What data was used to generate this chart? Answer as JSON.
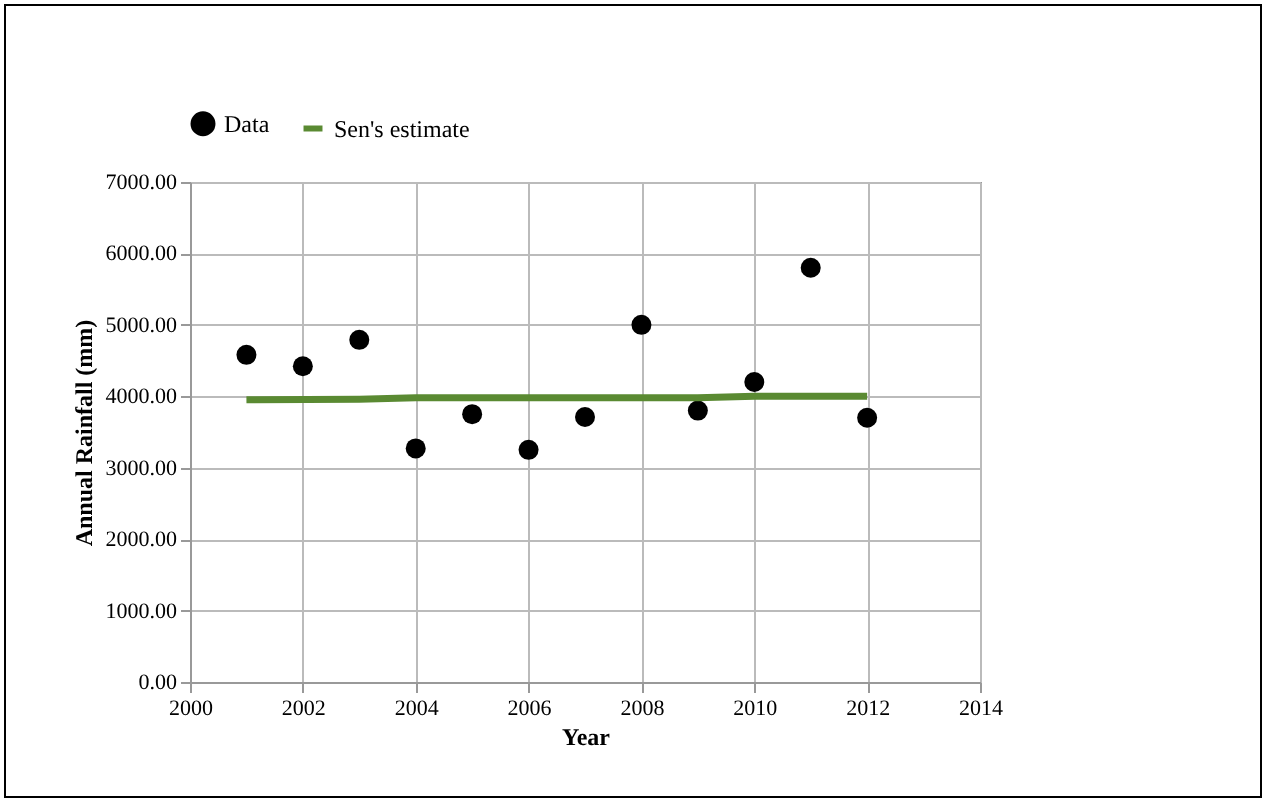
{
  "chart_data": {
    "type": "scatter",
    "xlabel": "Year",
    "ylabel": "Annual Rainfall (mm)",
    "x": [
      2001,
      2002,
      2003,
      2004,
      2005,
      2006,
      2007,
      2008,
      2009,
      2010,
      2011,
      2012
    ],
    "series": [
      {
        "name": "Data",
        "color": "#000000",
        "marker": "circle",
        "values": [
          4580,
          4420,
          4790,
          3270,
          3750,
          3250,
          3710,
          5000,
          3800,
          4200,
          5800,
          3700
        ]
      },
      {
        "name": "Sen's estimate",
        "color": "#5a8a32",
        "type": "line",
        "line_style": "solid",
        "x": [
          2001,
          2003,
          2004,
          2009,
          2010,
          2012
        ],
        "values": [
          3950,
          3960,
          3980,
          3980,
          4000,
          4000
        ]
      }
    ],
    "xlim": [
      2000,
      2014
    ],
    "xticks": [
      2000,
      2002,
      2004,
      2006,
      2008,
      2010,
      2012,
      2014
    ],
    "ylim": [
      0,
      7000
    ],
    "yticks": [
      {
        "value": 0,
        "label": "0.00"
      },
      {
        "value": 1000,
        "label": "1000.00"
      },
      {
        "value": 2000,
        "label": "2000.00"
      },
      {
        "value": 3000,
        "label": "3000.00"
      },
      {
        "value": 4000,
        "label": "4000.00"
      },
      {
        "value": 5000,
        "label": "5000.00"
      },
      {
        "value": 6000,
        "label": "6000.00"
      },
      {
        "value": 7000,
        "label": "7000.00"
      }
    ],
    "grid": true,
    "legend": "top"
  }
}
